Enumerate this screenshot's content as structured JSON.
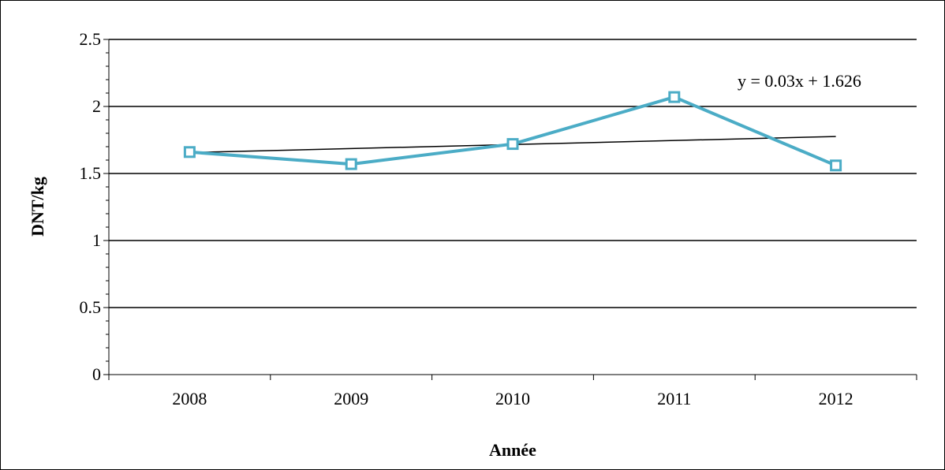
{
  "chart_data": {
    "type": "line",
    "categories": [
      "2008",
      "2009",
      "2010",
      "2011",
      "2012"
    ],
    "series": [
      {
        "values": [
          1.66,
          1.57,
          1.72,
          2.07,
          1.56
        ],
        "color": "#4bacc6",
        "marker": "square"
      }
    ],
    "trendline": {
      "type": "linear",
      "slope": 0.03,
      "intercept": 1.626,
      "label": "y = 0.03x + 1.626",
      "color": "#000000"
    },
    "ylim": [
      0,
      2.5
    ],
    "yticks": [
      "0",
      "0.5",
      "1",
      "1.5",
      "2",
      "2.5"
    ],
    "y_major_step": 0.5,
    "y_minor_step": 0.1,
    "xlabel": "Année",
    "ylabel": "DNT/kg",
    "grid": "horizontal major gridlines",
    "legend": "none"
  }
}
